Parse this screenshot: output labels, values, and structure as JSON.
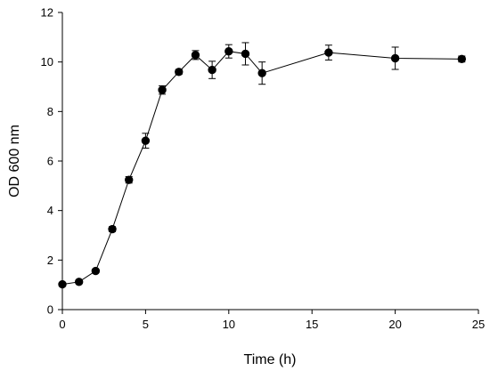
{
  "chart_data": {
    "type": "scatter",
    "title": "",
    "xlabel": "Time (h)",
    "ylabel": "OD 600 nm",
    "xlim": [
      0,
      25
    ],
    "ylim": [
      0,
      12
    ],
    "x_ticks": [
      0,
      5,
      10,
      15,
      20,
      25
    ],
    "y_ticks": [
      0,
      2,
      4,
      6,
      8,
      10,
      12
    ],
    "grid": false,
    "legend": "none",
    "line_color": "#000000",
    "marker_color": "#000000",
    "series": [
      {
        "x": [
          0,
          1,
          2,
          3,
          4,
          5,
          6,
          7,
          8,
          9,
          10,
          11,
          12,
          16,
          20,
          24
        ],
        "y": [
          1.02,
          1.12,
          1.56,
          3.25,
          5.24,
          6.82,
          8.87,
          9.6,
          10.28,
          9.68,
          10.43,
          10.33,
          9.55,
          10.38,
          10.15,
          10.12
        ],
        "error": [
          0.07,
          0.07,
          0.07,
          0.1,
          0.13,
          0.3,
          0.17,
          0.1,
          0.18,
          0.35,
          0.27,
          0.45,
          0.45,
          0.3,
          0.45,
          0.12
        ],
        "connected": true
      }
    ]
  }
}
